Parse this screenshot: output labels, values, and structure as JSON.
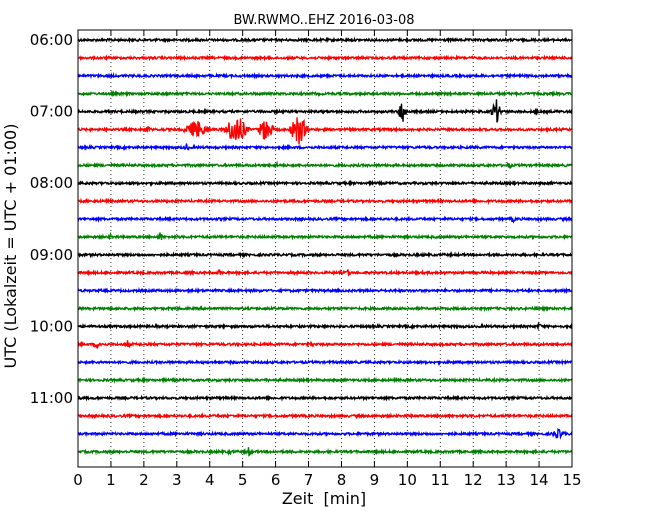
{
  "chart_data": {
    "type": "line",
    "title": "BW.RWMO..EHZ 2016-03-08",
    "xlabel": "Zeit  [min]",
    "ylabel": "UTC (Lokalzeit = UTC + 01:00)",
    "xlim": [
      0,
      15
    ],
    "x_ticks": [
      "0",
      "1",
      "2",
      "3",
      "4",
      "5",
      "6",
      "7",
      "8",
      "9",
      "10",
      "11",
      "12",
      "13",
      "14",
      "15"
    ],
    "y_tick_labels": [
      "06:00",
      "07:00",
      "08:00",
      "09:00",
      "10:00",
      "11:00"
    ],
    "rows_per_hour": 4,
    "minutes_per_row": 15,
    "grid": "vertical dotted lines at each minute",
    "colors": [
      "#000000",
      "#ff0000",
      "#0000ff",
      "#008000"
    ],
    "series": [
      {
        "row_start": "06:00",
        "events": []
      },
      {
        "row_start": "06:15",
        "events": []
      },
      {
        "row_start": "06:30",
        "events": []
      },
      {
        "row_start": "06:45",
        "events": []
      },
      {
        "row_start": "07:00",
        "events": [
          {
            "minute": 9.85,
            "amplitude": 0.9,
            "width": 0.15
          },
          {
            "minute": 12.7,
            "amplitude": 0.8,
            "width": 0.2
          },
          {
            "minute": 13.9,
            "amplitude": 0.25,
            "width": 0.1
          }
        ]
      },
      {
        "row_start": "07:15",
        "events": [
          {
            "minute": 2.1,
            "amplitude": 0.3,
            "width": 0.15
          },
          {
            "minute": 3.6,
            "amplitude": 0.6,
            "width": 0.5
          },
          {
            "minute": 4.8,
            "amplitude": 1.0,
            "width": 0.45
          },
          {
            "minute": 5.7,
            "amplitude": 0.8,
            "width": 0.3
          },
          {
            "minute": 6.7,
            "amplitude": 1.0,
            "width": 0.35
          }
        ]
      },
      {
        "row_start": "07:30",
        "events": [
          {
            "minute": 3.3,
            "amplitude": 0.3,
            "width": 0.1
          }
        ]
      },
      {
        "row_start": "07:45",
        "events": [
          {
            "minute": 6.0,
            "amplitude": 0.25,
            "width": 0.1
          },
          {
            "minute": 13.1,
            "amplitude": 0.25,
            "width": 0.1
          }
        ]
      },
      {
        "row_start": "08:00",
        "events": []
      },
      {
        "row_start": "08:15",
        "events": []
      },
      {
        "row_start": "08:30",
        "events": [
          {
            "minute": 13.2,
            "amplitude": 0.25,
            "width": 0.1
          }
        ]
      },
      {
        "row_start": "08:45",
        "events": [
          {
            "minute": 1.0,
            "amplitude": 0.2,
            "width": 0.1
          },
          {
            "minute": 2.5,
            "amplitude": 0.35,
            "width": 0.1
          }
        ]
      },
      {
        "row_start": "09:00",
        "events": []
      },
      {
        "row_start": "09:15",
        "events": [
          {
            "minute": 4.3,
            "amplitude": 0.25,
            "width": 0.1
          },
          {
            "minute": 8.2,
            "amplitude": 0.3,
            "width": 0.1
          }
        ]
      },
      {
        "row_start": "09:30",
        "events": []
      },
      {
        "row_start": "09:45",
        "events": []
      },
      {
        "row_start": "10:00",
        "events": [
          {
            "minute": 14.0,
            "amplitude": 0.2,
            "width": 0.15
          }
        ]
      },
      {
        "row_start": "10:15",
        "events": [
          {
            "minute": 0.6,
            "amplitude": 0.25,
            "width": 0.2
          },
          {
            "minute": 1.5,
            "amplitude": 0.3,
            "width": 0.1
          },
          {
            "minute": 7.1,
            "amplitude": 0.2,
            "width": 0.1
          }
        ]
      },
      {
        "row_start": "10:30",
        "events": []
      },
      {
        "row_start": "10:45",
        "events": []
      },
      {
        "row_start": "11:00",
        "events": []
      },
      {
        "row_start": "11:15",
        "events": []
      },
      {
        "row_start": "11:30",
        "events": [
          {
            "minute": 14.6,
            "amplitude": 0.3,
            "width": 0.3
          }
        ]
      },
      {
        "row_start": "11:45",
        "events": [
          {
            "minute": 5.2,
            "amplitude": 0.35,
            "width": 0.15
          },
          {
            "minute": 4.6,
            "amplitude": 0.2,
            "width": 0.1
          }
        ]
      }
    ]
  }
}
